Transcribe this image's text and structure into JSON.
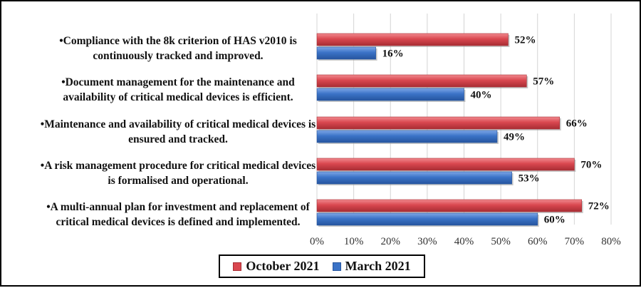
{
  "chart_data": {
    "type": "bar",
    "orientation": "horizontal",
    "categories": [
      [
        "•Compliance with the 8k criterion of HAS v2010 is",
        "continuously tracked and improved."
      ],
      [
        "•Document management for the maintenance and",
        "availability of critical medical devices  is efficient."
      ],
      [
        "•Maintenance and availability of critical medical devices is",
        "ensured and tracked."
      ],
      [
        "•A risk management procedure for critical medical devices",
        "is formalised and operational."
      ],
      [
        "•A multi-annual plan for investment and replacement   of",
        "critical medical devices is defined and implemented."
      ]
    ],
    "series": [
      {
        "name": "October 2021",
        "color": "#d9474f",
        "values": [
          52,
          57,
          66,
          70,
          72
        ]
      },
      {
        "name": "March 2021",
        "color": "#3b73c7",
        "values": [
          16,
          40,
          49,
          53,
          60
        ]
      }
    ],
    "xlim": [
      0,
      80
    ],
    "xticks": [
      0,
      10,
      20,
      30,
      40,
      50,
      60,
      70,
      80
    ],
    "tick_suffix": "%",
    "value_suffix": "%",
    "grid": true,
    "legend_position": "bottom"
  }
}
